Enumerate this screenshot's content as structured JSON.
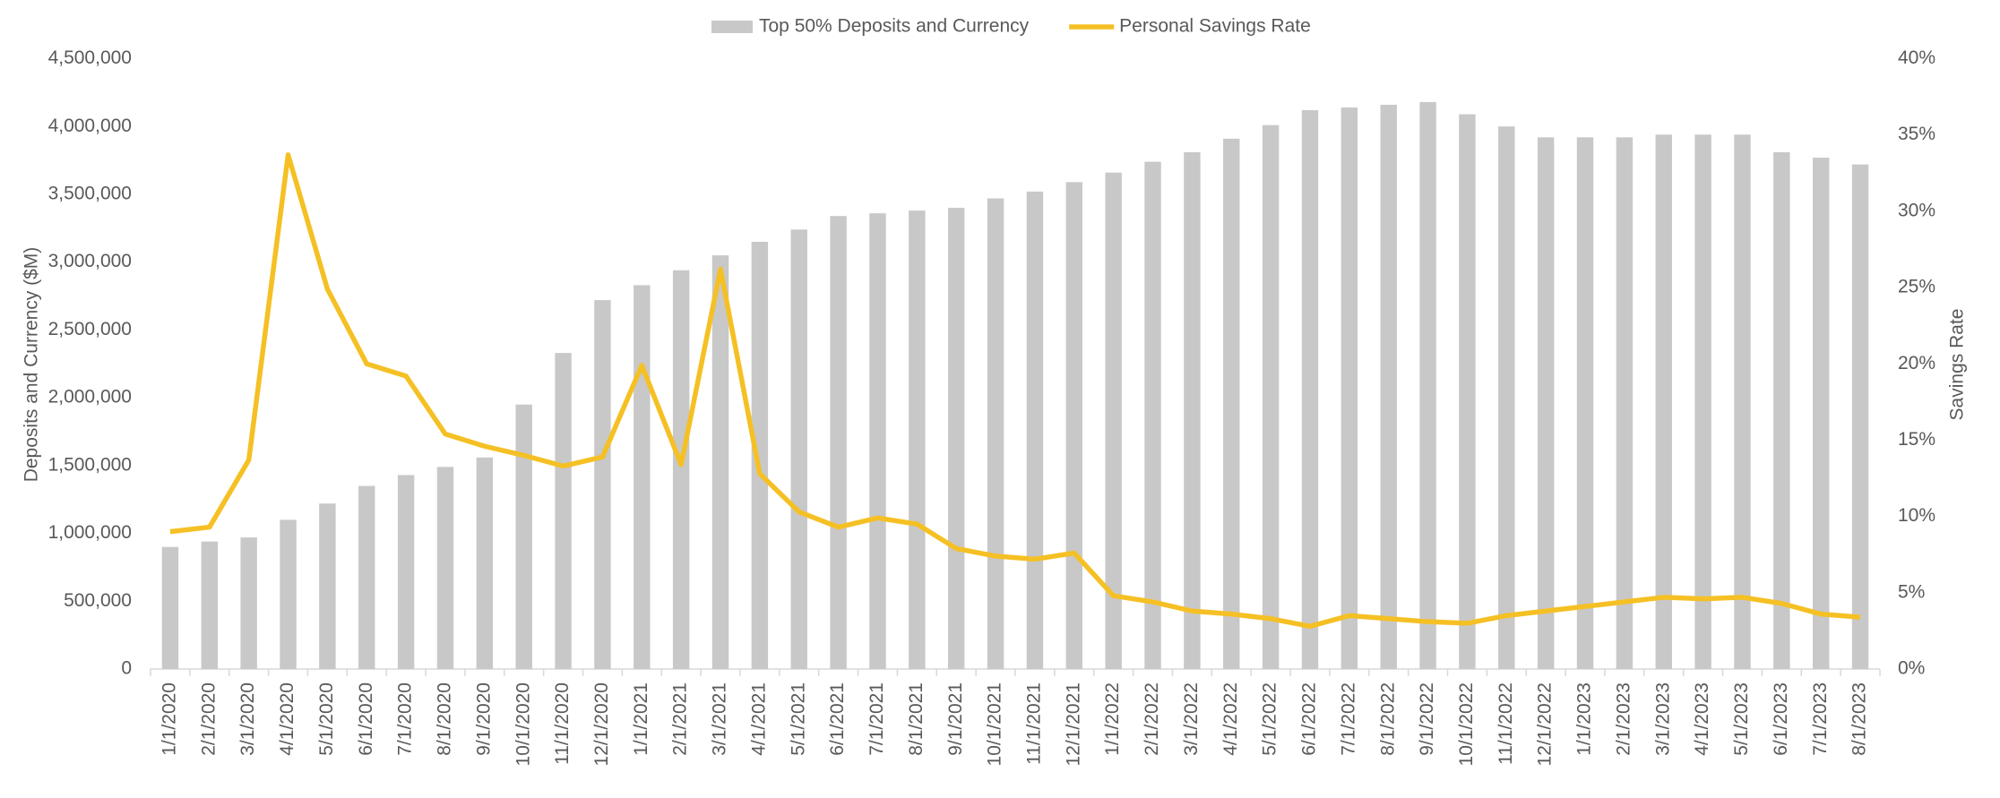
{
  "chart_data": {
    "type": "bar_line",
    "categories": [
      "1/1/2020",
      "2/1/2020",
      "3/1/2020",
      "4/1/2020",
      "5/1/2020",
      "6/1/2020",
      "7/1/2020",
      "8/1/2020",
      "9/1/2020",
      "10/1/2020",
      "11/1/2020",
      "12/1/2020",
      "1/1/2021",
      "2/1/2021",
      "3/1/2021",
      "4/1/2021",
      "5/1/2021",
      "6/1/2021",
      "7/1/2021",
      "8/1/2021",
      "9/1/2021",
      "10/1/2021",
      "11/1/2021",
      "12/1/2021",
      "1/1/2022",
      "2/1/2022",
      "3/1/2022",
      "4/1/2022",
      "5/1/2022",
      "6/1/2022",
      "7/1/2022",
      "8/1/2022",
      "9/1/2022",
      "10/1/2022",
      "11/1/2022",
      "12/1/2022",
      "1/1/2023",
      "2/1/2023",
      "3/1/2023",
      "4/1/2023",
      "5/1/2023",
      "6/1/2023",
      "7/1/2023",
      "8/1/2023"
    ],
    "series": [
      {
        "name": "Top 50% Deposits and Currency",
        "color": "#c8c8c8",
        "kind": "bar",
        "axis": "y",
        "values": [
          900000,
          940000,
          970000,
          1100000,
          1220000,
          1350000,
          1430000,
          1490000,
          1560000,
          1950000,
          2330000,
          2720000,
          2830000,
          2940000,
          3050000,
          3150000,
          3240000,
          3340000,
          3360000,
          3380000,
          3400000,
          3470000,
          3520000,
          3590000,
          3660000,
          3740000,
          3810000,
          3910000,
          4010000,
          4120000,
          4140000,
          4160000,
          4180000,
          4090000,
          4000000,
          3920000,
          3920000,
          3920000,
          3940000,
          3940000,
          3940000,
          3810000,
          3770000,
          3720000
        ]
      },
      {
        "name": "Personal Savings Rate",
        "color": "#f5c024",
        "kind": "line",
        "axis": "y2",
        "values": [
          9.0,
          9.3,
          13.7,
          33.7,
          24.9,
          20.0,
          19.2,
          15.4,
          14.6,
          14.0,
          13.3,
          13.9,
          19.9,
          13.4,
          26.2,
          12.8,
          10.3,
          9.3,
          9.9,
          9.5,
          7.9,
          7.4,
          7.2,
          7.6,
          4.8,
          4.4,
          3.8,
          3.6,
          3.3,
          2.8,
          3.5,
          3.3,
          3.1,
          3.0,
          3.5,
          3.8,
          4.1,
          4.4,
          4.7,
          4.6,
          4.7,
          4.3,
          3.6,
          3.4
        ]
      }
    ],
    "ylabel": "Deposits and Currency ($M)",
    "y2label": "Savings Rate",
    "ylim": [
      0,
      4500000
    ],
    "yticks": [
      0,
      {
        "value": 500000,
        "label": "500,000"
      },
      {
        "value": 1000000,
        "label": "1,000,000"
      },
      {
        "value": 1500000,
        "label": "1,500,000"
      },
      {
        "value": 2000000,
        "label": "2,000,000"
      },
      {
        "value": 2500000,
        "label": "2,500,000"
      },
      {
        "value": 3000000,
        "label": "3,000,000"
      },
      {
        "value": 3500000,
        "label": "3,500,000"
      },
      {
        "value": 4000000,
        "label": "4,000,000"
      },
      {
        "value": 4500000,
        "label": "4,500,000"
      }
    ],
    "y2lim": [
      0,
      40
    ],
    "y2ticks": [
      {
        "value": 0,
        "label": "0%"
      },
      {
        "value": 5,
        "label": "5%"
      },
      {
        "value": 10,
        "label": "10%"
      },
      {
        "value": 15,
        "label": "15%"
      },
      {
        "value": 20,
        "label": "20%"
      },
      {
        "value": 25,
        "label": "25%"
      },
      {
        "value": 30,
        "label": "30%"
      },
      {
        "value": 35,
        "label": "35%"
      },
      {
        "value": 40,
        "label": "40%"
      }
    ],
    "legend": "top",
    "grid": false
  }
}
